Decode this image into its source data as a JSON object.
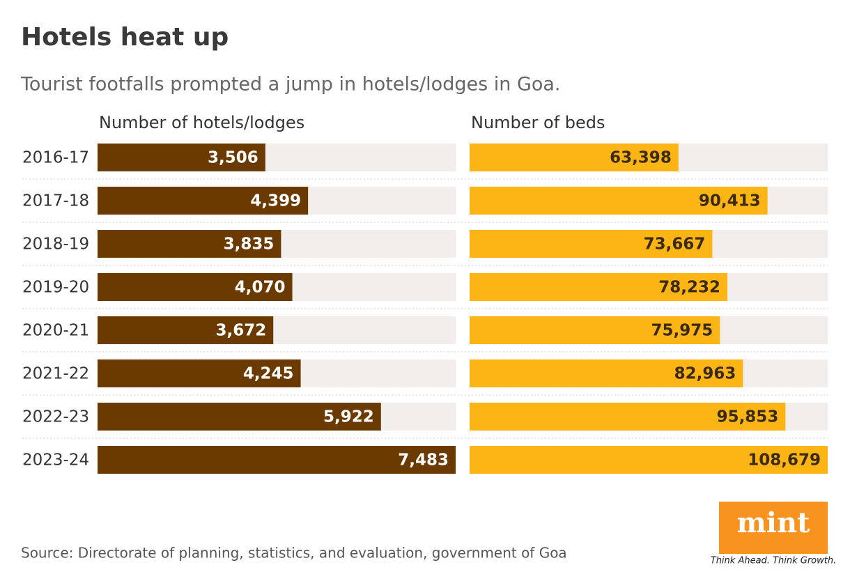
{
  "title": "Hotels heat up",
  "subtitle": "Tourist footfalls prompted a jump in hotels/lodges in Goa.",
  "source": "Source: Directorate of planning, statistics, and evaluation, government of Goa",
  "logo": {
    "name": "mint",
    "tagline": "Think Ahead. Think Growth."
  },
  "chart_data": {
    "type": "bar",
    "categories": [
      "2016-17",
      "2017-18",
      "2018-19",
      "2019-20",
      "2020-21",
      "2021-22",
      "2022-23",
      "2023-24"
    ],
    "series": [
      {
        "name": "Number of hotels/lodges",
        "color": "#6b3a00",
        "label_color": "#ffffff",
        "values": [
          3506,
          4399,
          3835,
          4070,
          3672,
          4245,
          5922,
          7483
        ],
        "value_labels": [
          "3,506",
          "4,399",
          "3,835",
          "4,070",
          "3,672",
          "4,245",
          "5,922",
          "7,483"
        ],
        "xlim": [
          0,
          7483
        ]
      },
      {
        "name": "Number of beds",
        "color": "#fdb515",
        "label_color": "#3b2a14",
        "values": [
          63398,
          90413,
          73667,
          78232,
          75975,
          82963,
          95853,
          108679
        ],
        "value_labels": [
          "63,398",
          "90,413",
          "73,667",
          "78,232",
          "75,975",
          "82,963",
          "95,853",
          "108,679"
        ],
        "xlim": [
          0,
          108679
        ]
      }
    ]
  }
}
